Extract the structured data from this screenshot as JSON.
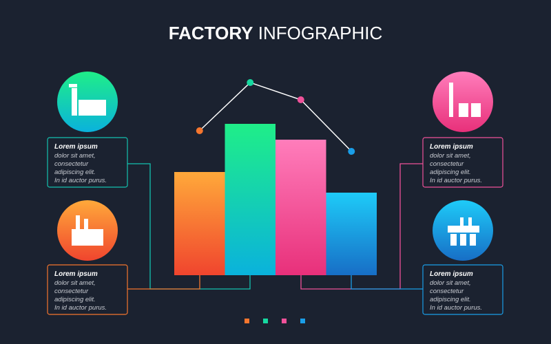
{
  "title_strong": "FACTORY",
  "title_light": "INFOGRAPHIC",
  "panels": [
    {
      "title": "Lorem ipsum",
      "lines": [
        "dolor sit amet,",
        "consectetur",
        "adipiscing elit.",
        "In id auctor purus."
      ]
    },
    {
      "title": "Lorem ipsum",
      "lines": [
        "dolor sit amet,",
        "consectetur",
        "adipiscing elit.",
        "In id auctor purus."
      ]
    },
    {
      "title": "Lorem ipsum",
      "lines": [
        "dolor sit amet,",
        "consectetur",
        "adipiscing elit.",
        "In id auctor purus."
      ]
    },
    {
      "title": "Lorem ipsum",
      "lines": [
        "dolor sit amet,",
        "consectetur",
        "adipiscing elit.",
        "In id auctor purus."
      ]
    }
  ],
  "chart_data": {
    "type": "bar",
    "categories": [
      null,
      null,
      null,
      null
    ],
    "values": [
      150,
      220,
      197,
      120
    ],
    "colors": [
      [
        "#ffa93a",
        "#f0452e"
      ],
      [
        "#1fee88",
        "#0ab2dc"
      ],
      [
        "#ff7dbb",
        "#e8307a"
      ],
      [
        "#1ecbf8",
        "#176ec6"
      ]
    ],
    "line": {
      "values": [
        210,
        280,
        255,
        180
      ],
      "color": "#ffffff",
      "marker_colors": [
        "#f5762e",
        "#16d9a0",
        "#f0529a",
        "#1a9ee8"
      ]
    },
    "ylim": [
      0,
      300
    ]
  }
}
